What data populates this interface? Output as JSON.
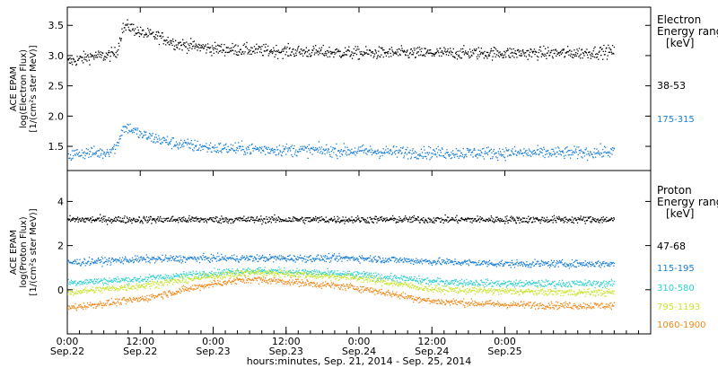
{
  "chart_data": [
    {
      "type": "scatter",
      "panel": "electron",
      "ylabel_lines": [
        "ACE EPAM",
        "log(Electron Flux)",
        "[1/(cm²s ster MeV)]"
      ],
      "ylim": [
        1.1,
        3.8
      ],
      "yticks": [
        1.5,
        2.0,
        2.5,
        3.0,
        3.5
      ],
      "ytick_labels": [
        "1.5",
        "2.0",
        "2.5",
        "3.0",
        "3.5"
      ],
      "legend_title": [
        "Electron",
        "Energy ranges",
        "[keV]"
      ],
      "series": [
        {
          "name": "38-53",
          "color": "#000000",
          "x": [
            0,
            2,
            4,
            6,
            8,
            9,
            10,
            12,
            15,
            18,
            24,
            36,
            48,
            60,
            72,
            84,
            90
          ],
          "y": [
            2.9,
            2.95,
            3.0,
            3.0,
            3.05,
            3.45,
            3.5,
            3.38,
            3.32,
            3.2,
            3.12,
            3.08,
            3.05,
            3.05,
            3.05,
            3.05,
            3.08
          ]
        },
        {
          "name": "175-315",
          "color": "#1a7fd6",
          "x": [
            0,
            2,
            4,
            6,
            8,
            9,
            10,
            12,
            15,
            18,
            24,
            36,
            48,
            60,
            72,
            84,
            90
          ],
          "y": [
            1.35,
            1.4,
            1.4,
            1.4,
            1.5,
            1.8,
            1.82,
            1.7,
            1.62,
            1.55,
            1.48,
            1.45,
            1.43,
            1.4,
            1.4,
            1.4,
            1.42
          ]
        }
      ]
    },
    {
      "type": "scatter",
      "panel": "proton",
      "ylabel_lines": [
        "ACE EPAM",
        "log(Proton Flux)",
        "[1/(cm²s ster MeV)]"
      ],
      "ylim": [
        -2.0,
        5.4
      ],
      "yticks": [
        0,
        2,
        4
      ],
      "ytick_labels": [
        "0",
        "2",
        "4"
      ],
      "legend_title": [
        "Proton",
        "Energy ranges",
        "[keV]"
      ],
      "series": [
        {
          "name": "47-68",
          "color": "#000000",
          "x": [
            0,
            24,
            48,
            72,
            90
          ],
          "y": [
            3.2,
            3.2,
            3.2,
            3.2,
            3.2
          ]
        },
        {
          "name": "115-195",
          "color": "#1a7fd6",
          "x": [
            0,
            12,
            24,
            36,
            48,
            60,
            72,
            84,
            90
          ],
          "y": [
            1.25,
            1.4,
            1.45,
            1.45,
            1.45,
            1.3,
            1.2,
            1.2,
            1.2
          ]
        },
        {
          "name": "310-580",
          "color": "#2ed0d0",
          "x": [
            0,
            12,
            24,
            30,
            36,
            48,
            60,
            72,
            84,
            90
          ],
          "y": [
            0.35,
            0.5,
            0.8,
            0.9,
            0.85,
            0.7,
            0.4,
            0.3,
            0.3,
            0.3
          ]
        },
        {
          "name": "795-1193",
          "color": "#c8e62c",
          "x": [
            0,
            12,
            24,
            30,
            36,
            48,
            60,
            72,
            84,
            90
          ],
          "y": [
            -0.1,
            0.2,
            0.65,
            0.8,
            0.75,
            0.55,
            0.05,
            -0.05,
            -0.1,
            -0.1
          ]
        },
        {
          "name": "1060-1900",
          "color": "#f08a1c",
          "x": [
            0,
            12,
            24,
            30,
            36,
            48,
            60,
            72,
            84,
            90
          ],
          "y": [
            -0.8,
            -0.4,
            0.3,
            0.5,
            0.4,
            0.1,
            -0.5,
            -0.65,
            -0.7,
            -0.7
          ]
        }
      ]
    }
  ],
  "x_axis": {
    "xlim_hours": [
      0,
      96
    ],
    "ticks": [
      {
        "t": 0,
        "time": "0:00",
        "date": "Sep.22"
      },
      {
        "t": 12,
        "time": "12:00",
        "date": "Sep.22"
      },
      {
        "t": 24,
        "time": "0:00",
        "date": "Sep.23"
      },
      {
        "t": 36,
        "time": "12:00",
        "date": "Sep.23"
      },
      {
        "t": 48,
        "time": "0:00",
        "date": "Sep.24"
      },
      {
        "t": 60,
        "time": "12:00",
        "date": "Sep.24"
      },
      {
        "t": 72,
        "time": "0:00",
        "date": "Sep.25"
      }
    ],
    "xlabel": "hours:minutes, Sep. 21, 2014 - Sep. 25, 2014"
  }
}
